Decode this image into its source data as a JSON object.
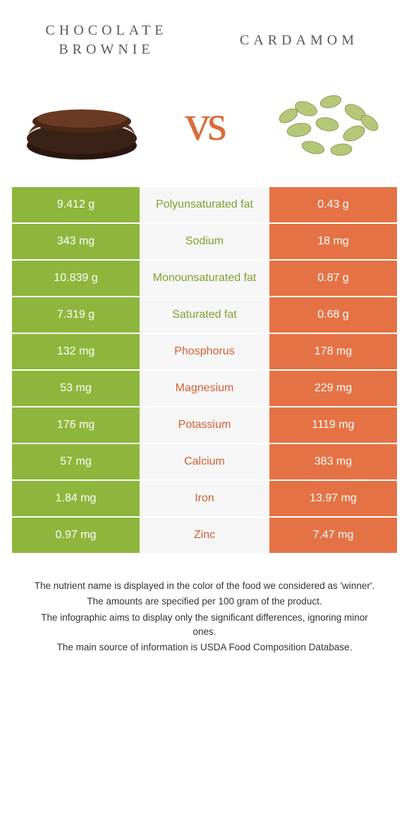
{
  "colors": {
    "green": "#8eb63c",
    "orange": "#e57245",
    "mid_bg": "#f6f6f6",
    "mid_text_green": "#7da12e",
    "mid_text_orange": "#d45f33",
    "title_text": "#5a5a5a",
    "vs_text": "#d96c3a"
  },
  "header": {
    "left_title": "CHOCOLATE BROWNIE",
    "right_title": "CARDAMOM",
    "vs": "vs"
  },
  "rows": [
    {
      "left": "9.412 g",
      "label": "Polyunsaturated fat",
      "right": "0.43 g",
      "winner": "left"
    },
    {
      "left": "343 mg",
      "label": "Sodium",
      "right": "18 mg",
      "winner": "left"
    },
    {
      "left": "10.839 g",
      "label": "Monounsaturated fat",
      "right": "0.87 g",
      "winner": "left"
    },
    {
      "left": "7.319 g",
      "label": "Saturated fat",
      "right": "0.68 g",
      "winner": "left"
    },
    {
      "left": "132 mg",
      "label": "Phosphorus",
      "right": "178 mg",
      "winner": "right"
    },
    {
      "left": "53 mg",
      "label": "Magnesium",
      "right": "229 mg",
      "winner": "right"
    },
    {
      "left": "176 mg",
      "label": "Potassium",
      "right": "1119 mg",
      "winner": "right"
    },
    {
      "left": "57 mg",
      "label": "Calcium",
      "right": "383 mg",
      "winner": "right"
    },
    {
      "left": "1.84 mg",
      "label": "Iron",
      "right": "13.97 mg",
      "winner": "right"
    },
    {
      "left": "0.97 mg",
      "label": "Zinc",
      "right": "7.47 mg",
      "winner": "right"
    }
  ],
  "footnotes": [
    "The nutrient name is displayed in the color of the food we considered as 'winner'.",
    "The amounts are specified per 100 gram of the product.",
    "The infographic aims to display only the significant differences, ignoring minor ones.",
    "The main source of information is USDA Food Composition Database."
  ]
}
